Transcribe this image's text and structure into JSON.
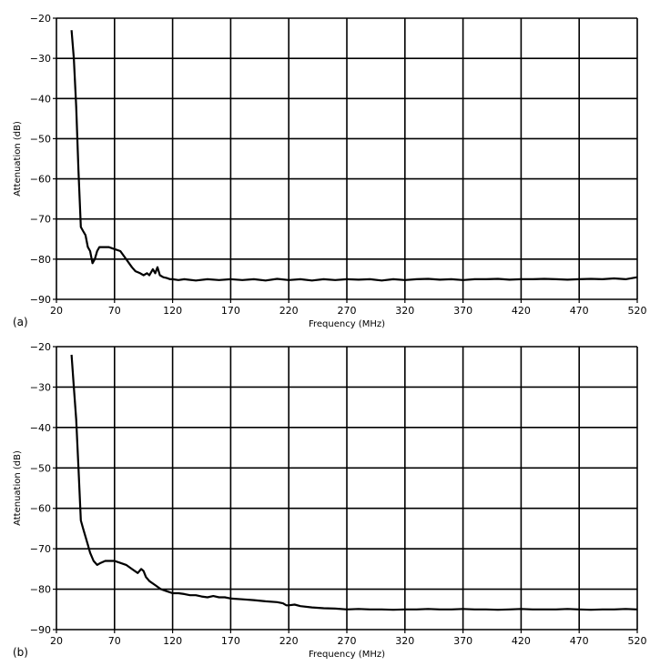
{
  "chart_data": [
    {
      "type": "line",
      "panel_label": "(a)",
      "xlabel": "Frequency (MHz)",
      "ylabel": "Attenuation (dB)",
      "xlim": [
        20,
        520
      ],
      "ylim": [
        -90,
        -20
      ],
      "xticks": [
        20,
        70,
        120,
        170,
        220,
        270,
        320,
        370,
        420,
        470,
        520
      ],
      "yticks": [
        -20,
        -30,
        -40,
        -50,
        -60,
        -70,
        -80,
        -90
      ],
      "grid": true,
      "series": [
        {
          "x": [
            33,
            35,
            37,
            39,
            41,
            43,
            45,
            47,
            49,
            51,
            53,
            55,
            57,
            60,
            65,
            70,
            75,
            80,
            85,
            88,
            92,
            95,
            98,
            100,
            103,
            105,
            107,
            109,
            112,
            115,
            118,
            120,
            125,
            130,
            140,
            150,
            160,
            170,
            180,
            190,
            200,
            210,
            220,
            230,
            240,
            250,
            260,
            270,
            280,
            290,
            300,
            310,
            320,
            330,
            340,
            350,
            360,
            370,
            380,
            390,
            400,
            410,
            420,
            430,
            440,
            450,
            460,
            470,
            480,
            490,
            500,
            510,
            520
          ],
          "y": [
            -23,
            -30,
            -42,
            -58,
            -72,
            -73,
            -74,
            -77,
            -78,
            -81,
            -80,
            -78,
            -77,
            -77,
            -77,
            -77.5,
            -78,
            -80,
            -82,
            -83,
            -83.5,
            -84,
            -83.5,
            -84,
            -82.5,
            -83.5,
            -82,
            -84,
            -84.5,
            -84.7,
            -85,
            -85,
            -85.2,
            -85,
            -85.3,
            -85,
            -85.2,
            -85,
            -85.2,
            -85,
            -85.3,
            -84.9,
            -85.2,
            -85,
            -85.3,
            -85,
            -85.2,
            -85,
            -85.1,
            -85,
            -85.3,
            -85,
            -85.2,
            -85,
            -84.9,
            -85.1,
            -85,
            -85.2,
            -85,
            -85,
            -84.9,
            -85.1,
            -85,
            -85,
            -84.9,
            -85,
            -85.1,
            -85,
            -84.9,
            -85,
            -84.8,
            -85,
            -84.5
          ]
        }
      ]
    },
    {
      "type": "line",
      "panel_label": "(b)",
      "xlabel": "Frequency (MHz)",
      "ylabel": "Attenuation (dB)",
      "xlim": [
        20,
        520
      ],
      "ylim": [
        -90,
        -20
      ],
      "xticks": [
        20,
        70,
        120,
        170,
        220,
        270,
        320,
        370,
        420,
        470,
        520
      ],
      "yticks": [
        -20,
        -30,
        -40,
        -50,
        -60,
        -70,
        -80,
        -90
      ],
      "grid": true,
      "series": [
        {
          "x": [
            33,
            35,
            37,
            39,
            41,
            43,
            45,
            47,
            49,
            52,
            55,
            58,
            62,
            66,
            70,
            75,
            80,
            85,
            90,
            93,
            95,
            97,
            100,
            105,
            110,
            115,
            120,
            125,
            130,
            135,
            140,
            145,
            150,
            155,
            160,
            165,
            170,
            180,
            190,
            200,
            210,
            215,
            218,
            220,
            225,
            230,
            240,
            250,
            260,
            270,
            280,
            290,
            300,
            310,
            320,
            330,
            340,
            350,
            360,
            370,
            380,
            390,
            400,
            410,
            420,
            430,
            440,
            450,
            460,
            470,
            480,
            490,
            500,
            510,
            520
          ],
          "y": [
            -22,
            -30,
            -38,
            -50,
            -63,
            -65,
            -67,
            -69,
            -71,
            -73,
            -74,
            -73.5,
            -73,
            -73,
            -73,
            -73.5,
            -74,
            -75,
            -76,
            -75,
            -75.5,
            -77,
            -78,
            -79,
            -80,
            -80.5,
            -81,
            -81,
            -81.2,
            -81.5,
            -81.5,
            -81.8,
            -82,
            -81.7,
            -82,
            -82,
            -82.3,
            -82.5,
            -82.7,
            -83,
            -83.2,
            -83.5,
            -84,
            -84,
            -83.8,
            -84.2,
            -84.5,
            -84.7,
            -84.8,
            -85,
            -84.9,
            -85,
            -85,
            -85.1,
            -85,
            -85,
            -84.9,
            -85,
            -85,
            -84.9,
            -85,
            -85,
            -85.1,
            -85,
            -84.9,
            -85,
            -85,
            -85,
            -84.9,
            -85,
            -85.1,
            -85,
            -85,
            -84.9,
            -85
          ]
        }
      ]
    }
  ]
}
